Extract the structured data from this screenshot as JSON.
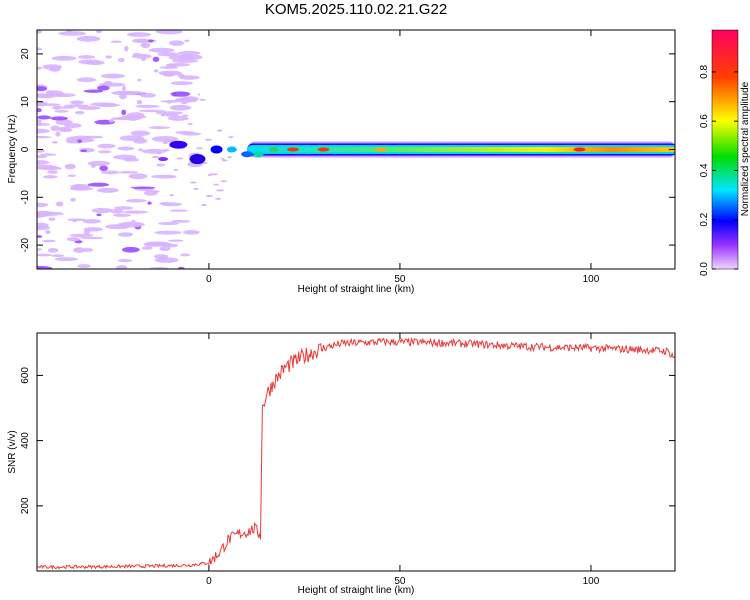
{
  "title": "KOM5.2025.110.02.21.G22",
  "chart_data": [
    {
      "type": "heatmap",
      "xlabel": "Height of straight line (km)",
      "ylabel": "Frequency (Hz)",
      "xlim": [
        -45,
        122
      ],
      "ylim": [
        -25,
        25
      ],
      "xticks": [
        "0",
        "50",
        "100"
      ],
      "yticks": [
        "-20",
        "-10",
        "0",
        "10",
        "20"
      ],
      "colorbar": {
        "label": "Normalized spectral amplitude",
        "range": [
          0,
          0.97
        ],
        "ticks": [
          "0.0",
          "0.2",
          "0.4",
          "0.6",
          "0.8"
        ]
      },
      "ridge": {
        "frequency_hz": 0,
        "start_height_km": -12,
        "end_height_km": 122,
        "peak_height_km": 97,
        "peak_amplitude": 0.97
      }
    },
    {
      "type": "line",
      "xlabel": "Height of straight line (km)",
      "ylabel": "SNR (v/v)",
      "xlim": [
        -45,
        122
      ],
      "ylim": [
        0,
        730
      ],
      "xticks": [
        "0",
        "50",
        "100"
      ],
      "yticks": [
        "200",
        "400",
        "600"
      ],
      "color": "#e83a3a",
      "series": [
        {
          "x": [
            -45,
            -30,
            -15,
            -5,
            0,
            3,
            5,
            8,
            10,
            12,
            13.5,
            14,
            15,
            17,
            20,
            25,
            30,
            35,
            40,
            45,
            50,
            60,
            70,
            80,
            90,
            100,
            110,
            115,
            120,
            122
          ],
          "values": [
            12,
            13,
            15,
            18,
            25,
            60,
            95,
            115,
            120,
            130,
            110,
            500,
            540,
            580,
            625,
            660,
            685,
            698,
            700,
            703,
            702,
            700,
            696,
            690,
            686,
            684,
            680,
            678,
            674,
            655
          ]
        }
      ]
    }
  ]
}
